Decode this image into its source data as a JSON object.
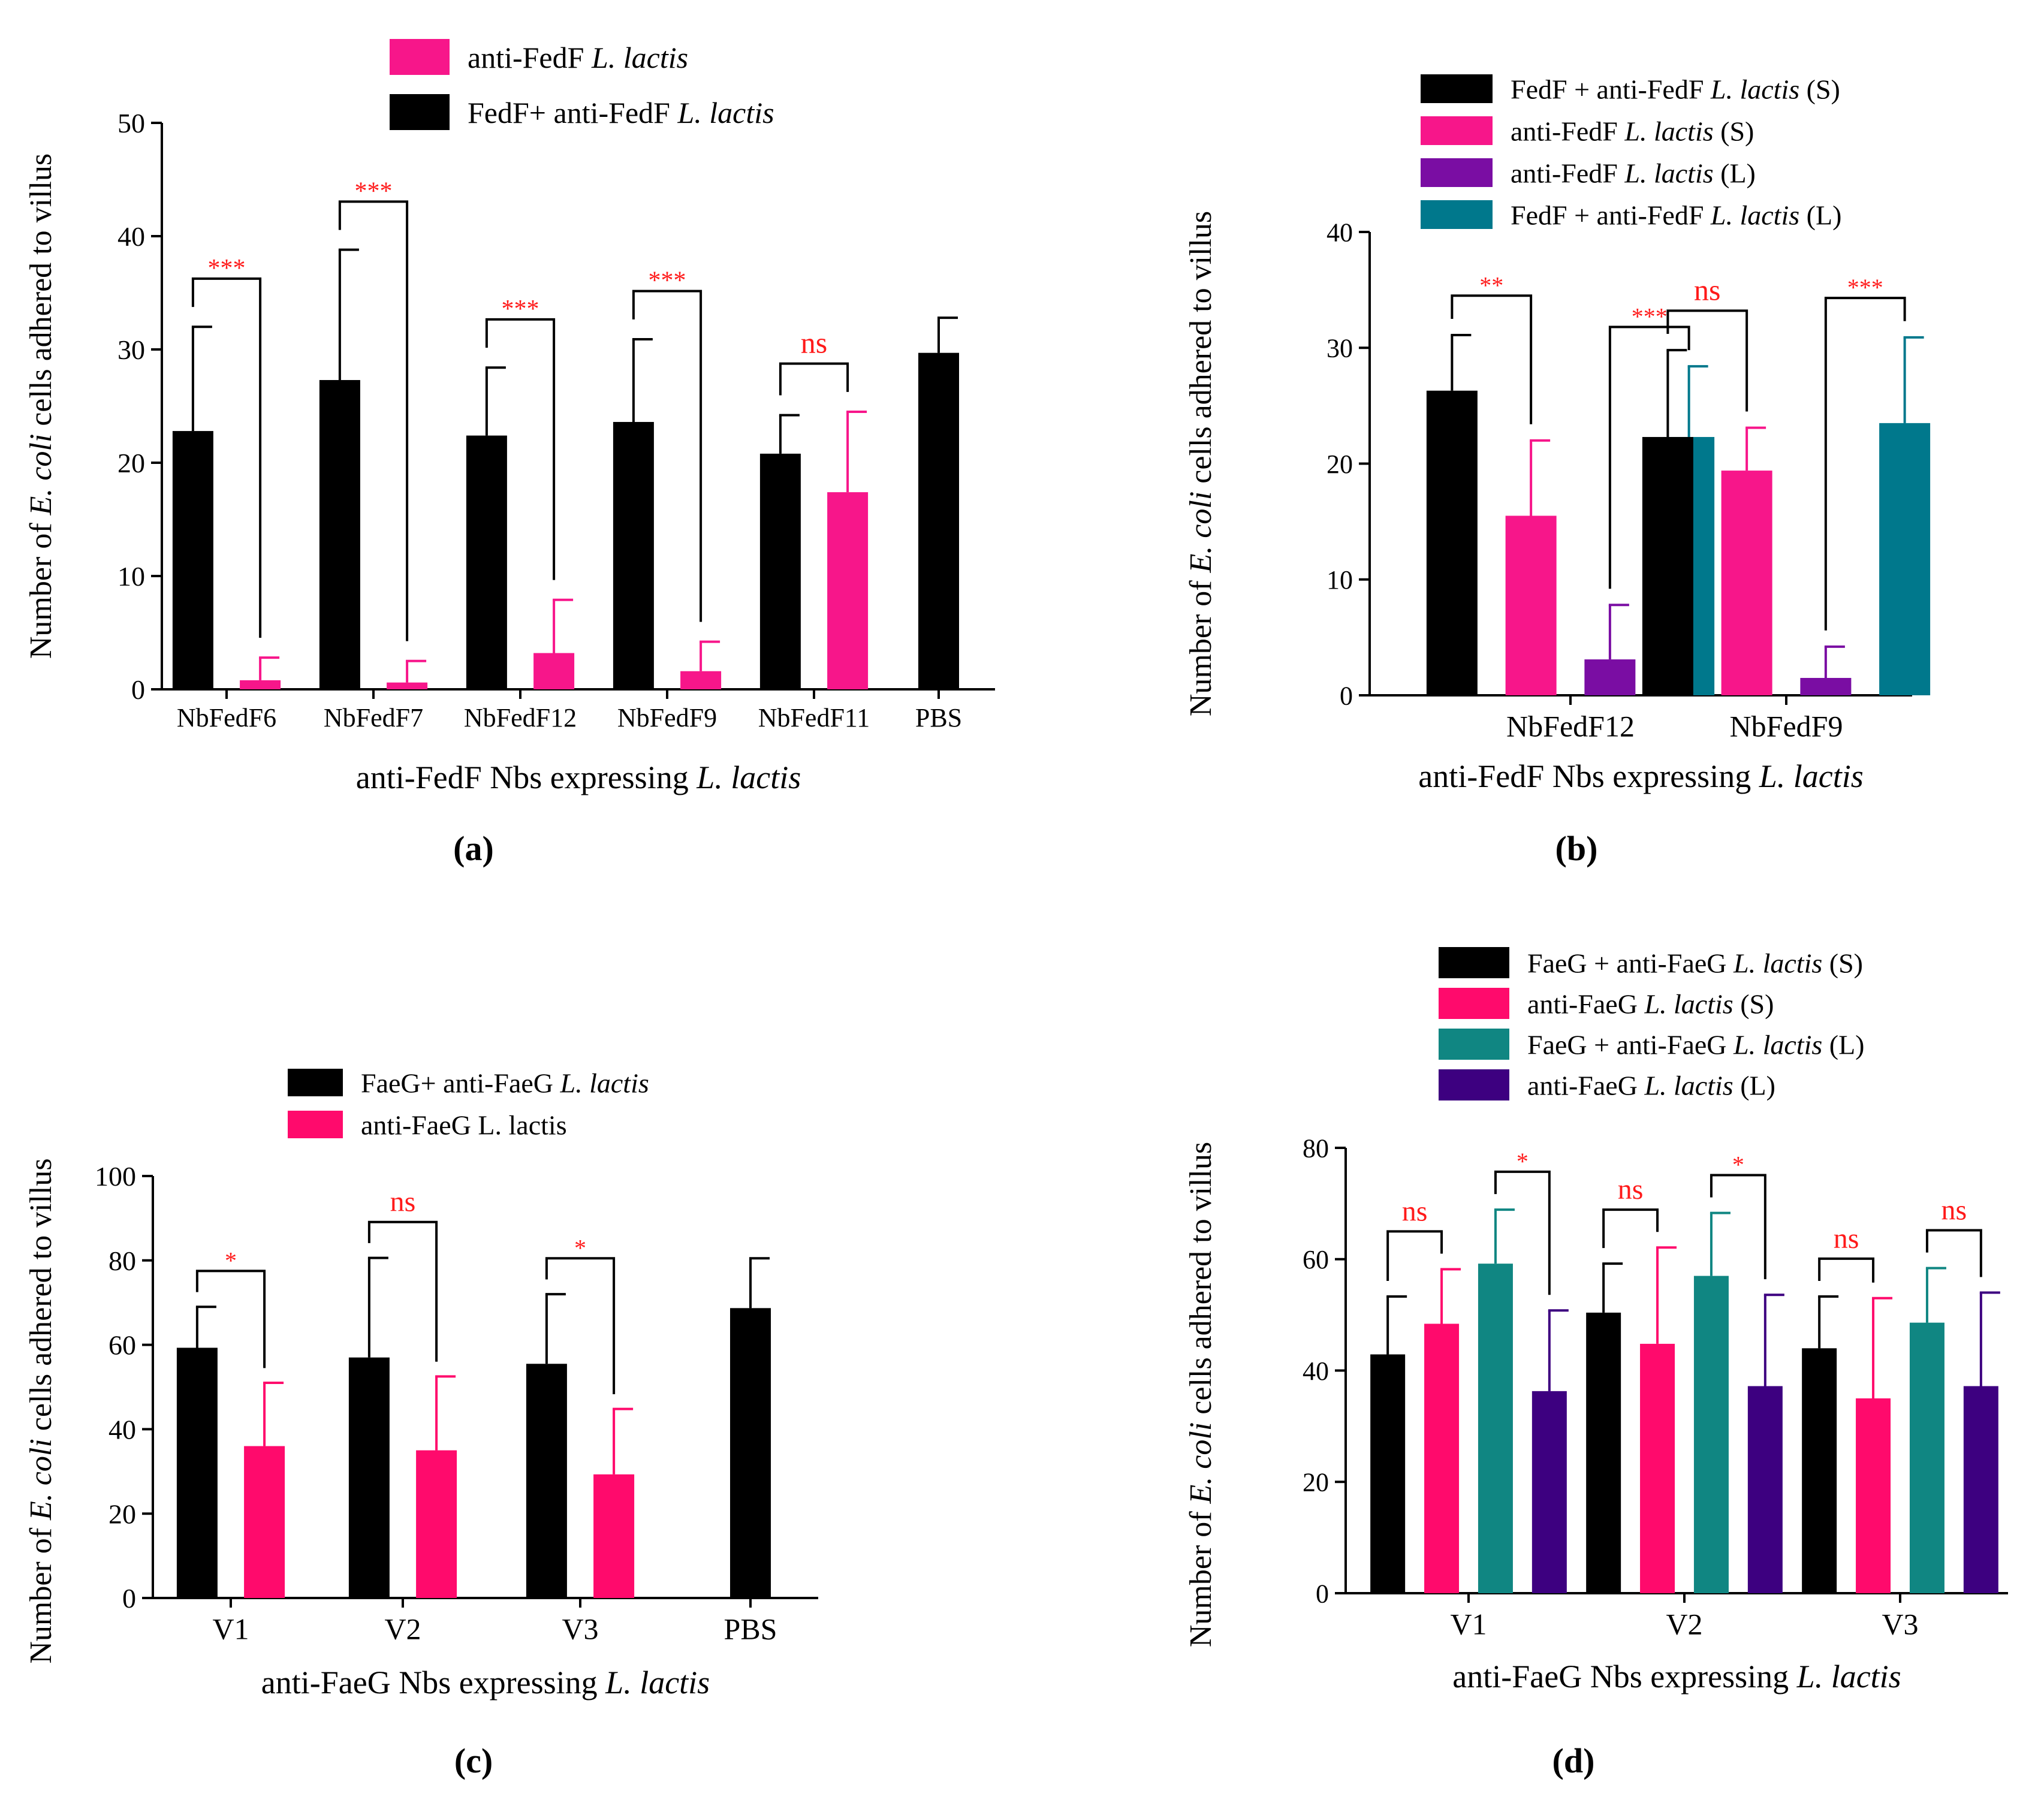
{
  "figure": {
    "panels": [
      "a",
      "b",
      "c",
      "d"
    ]
  },
  "colors": {
    "black": "#000000",
    "pink_ab": "#f7168a",
    "pink_cd": "#ff0a6c",
    "purple_b": "#7a0da3",
    "teal_b": "#00788c",
    "teal_d": "#108682",
    "indigo_d": "#3d0080",
    "sig_red": "#ff1a1a"
  },
  "chart_data": [
    {
      "id": "a",
      "type": "bar",
      "panel_label": "(a)",
      "ylabel_parts": [
        "Number of ",
        "E. coli",
        " cells adhered to villus"
      ],
      "xlabel_parts": [
        "anti-FedF Nbs expressing ",
        "L. lactis"
      ],
      "ylim": [
        0,
        50
      ],
      "yticks": [
        0,
        10,
        20,
        30,
        40,
        50
      ],
      "categories": [
        "NbFedF6",
        "NbFedF7",
        "NbFedF12",
        "NbFedF9",
        "NbFedF11",
        "PBS"
      ],
      "series": [
        {
          "name": "FedF+ anti-FedF L. lactis",
          "name_parts": [
            "FedF+ anti-FedF ",
            "L. lactis"
          ],
          "color": "#000000",
          "values": [
            22.8,
            27.3,
            22.4,
            23.6,
            20.8,
            29.7
          ],
          "errors": [
            9.2,
            11.5,
            6.0,
            7.3,
            3.4,
            3.1
          ]
        },
        {
          "name": "anti-FedF L. lactis",
          "name_parts": [
            "anti-FedF ",
            "L. lactis"
          ],
          "color": "#f7168a",
          "values": [
            0.8,
            0.6,
            3.2,
            1.6,
            17.4,
            null
          ],
          "errors": [
            2.0,
            1.9,
            4.7,
            2.6,
            7.1,
            null
          ]
        }
      ],
      "legend_order": [
        1,
        0
      ],
      "significance": [
        {
          "category": 0,
          "label": "***"
        },
        {
          "category": 1,
          "label": "***"
        },
        {
          "category": 2,
          "label": "***"
        },
        {
          "category": 3,
          "label": "***"
        },
        {
          "category": 4,
          "label": "ns"
        }
      ]
    },
    {
      "id": "b",
      "type": "bar",
      "panel_label": "(b)",
      "ylabel_parts": [
        "Number of ",
        "E. coli",
        " cells adhered to villus"
      ],
      "xlabel_parts": [
        "anti-FedF Nbs expressing ",
        "L. lactis"
      ],
      "ylim": [
        0,
        40
      ],
      "yticks": [
        0,
        10,
        20,
        30,
        40
      ],
      "categories": [
        "NbFedF12",
        "NbFedF9"
      ],
      "series": [
        {
          "name": "FedF + anti-FedF L. lactis (S)",
          "name_parts": [
            "FedF + anti-FedF ",
            "L. lactis",
            " (S)"
          ],
          "color": "#000000",
          "values": [
            26.3,
            22.3
          ],
          "errors": [
            4.8,
            7.5
          ]
        },
        {
          "name": "anti-FedF L. lactis (S)",
          "name_parts": [
            " anti-FedF ",
            "L. lactis",
            "  (S)"
          ],
          "color": "#f7168a",
          "values": [
            15.5,
            19.4
          ],
          "errors": [
            6.5,
            3.7
          ]
        },
        {
          "name": "anti-FedF L. lactis (L)",
          "name_parts": [
            "anti-FedF ",
            "L. lactis",
            "  (L)"
          ],
          "color": "#7a0da3",
          "values": [
            3.1,
            1.5
          ],
          "errors": [
            4.7,
            2.7
          ]
        },
        {
          "name": "FedF + anti-FedF L. lactis (L)",
          "name_parts": [
            "FedF + anti-FedF ",
            "L. lactis",
            " (L)"
          ],
          "color": "#00788c",
          "values": [
            22.3,
            23.5
          ],
          "errors": [
            6.1,
            7.4
          ]
        }
      ],
      "legend_order": [
        0,
        1,
        2,
        3
      ],
      "significance": [
        {
          "category": 0,
          "from": 0,
          "to": 1,
          "label": "**"
        },
        {
          "category": 0,
          "from": 2,
          "to": 3,
          "label": "***"
        },
        {
          "category": 1,
          "from": 0,
          "to": 1,
          "label": "ns"
        },
        {
          "category": 1,
          "from": 2,
          "to": 3,
          "label": "***"
        }
      ]
    },
    {
      "id": "c",
      "type": "bar",
      "panel_label": "(c)",
      "ylabel_parts": [
        "Number of ",
        "E. coli",
        " cells adhered to villus"
      ],
      "xlabel_parts": [
        "anti-FaeG Nbs expressing ",
        "L. lactis"
      ],
      "ylim": [
        0,
        100
      ],
      "yticks": [
        0,
        20,
        40,
        60,
        80,
        100
      ],
      "categories": [
        "V1",
        "V2",
        "V3",
        "PBS"
      ],
      "series": [
        {
          "name": "FaeG+ anti-FaeG L. lactis",
          "name_parts": [
            "FaeG+ anti-FaeG ",
            "L. lactis"
          ],
          "color": "#000000",
          "values": [
            59.3,
            57.0,
            55.5,
            68.7
          ],
          "errors": [
            9.7,
            23.6,
            16.5,
            11.8
          ]
        },
        {
          "name": "anti-FaeG L. lactis",
          "name_parts": [
            "anti-FaeG L. lactis"
          ],
          "color": "#ff0a6c",
          "values": [
            36.0,
            35.0,
            29.3,
            null
          ],
          "errors": [
            15.0,
            17.5,
            15.5,
            null
          ]
        }
      ],
      "legend_order": [
        0,
        1
      ],
      "significance": [
        {
          "category": 0,
          "label": "*"
        },
        {
          "category": 1,
          "label": "ns"
        },
        {
          "category": 2,
          "label": "*"
        }
      ]
    },
    {
      "id": "d",
      "type": "bar",
      "panel_label": "(d)",
      "ylabel_parts": [
        "Number of ",
        "E. coli",
        " cells adhered to villus"
      ],
      "xlabel_parts": [
        "anti-FaeG Nbs expressing ",
        "L. lactis"
      ],
      "ylim": [
        0,
        80
      ],
      "yticks": [
        0,
        20,
        40,
        60,
        80
      ],
      "categories": [
        "V1",
        "V2",
        "V3"
      ],
      "series": [
        {
          "name": "FaeG + anti-FaeG L. lactis (S)",
          "name_parts": [
            "FaeG + anti-FaeG ",
            "L. lactis",
            " (S)"
          ],
          "color": "#000000",
          "values": [
            42.9,
            50.4,
            44.0
          ],
          "errors": [
            10.4,
            8.8,
            9.3
          ]
        },
        {
          "name": "anti-FaeG L. lactis (S)",
          "name_parts": [
            "anti-FaeG ",
            "L. lactis",
            " (S)"
          ],
          "color": "#ff0a6c",
          "values": [
            48.4,
            44.8,
            35.0
          ],
          "errors": [
            9.8,
            17.3,
            18.0
          ]
        },
        {
          "name": "FaeG + anti-FaeG L. lactis (L)",
          "name_parts": [
            "FaeG + anti-FaeG ",
            "L. lactis",
            " (L)"
          ],
          "color": "#108682",
          "values": [
            59.2,
            57.0,
            48.6
          ],
          "errors": [
            9.7,
            11.3,
            9.8
          ]
        },
        {
          "name": "anti-FaeG L. lactis (L)",
          "name_parts": [
            "anti-FaeG ",
            "L. lactis",
            " (L)"
          ],
          "color": "#3d0080",
          "values": [
            36.3,
            37.2,
            37.2
          ],
          "errors": [
            14.5,
            16.4,
            16.8
          ]
        }
      ],
      "legend_order": [
        0,
        1,
        2,
        3
      ],
      "significance": [
        {
          "category": 0,
          "from": 0,
          "to": 1,
          "label": "ns"
        },
        {
          "category": 0,
          "from": 2,
          "to": 3,
          "label": "*"
        },
        {
          "category": 1,
          "from": 0,
          "to": 1,
          "label": "ns"
        },
        {
          "category": 1,
          "from": 2,
          "to": 3,
          "label": "*"
        },
        {
          "category": 2,
          "from": 0,
          "to": 1,
          "label": "ns"
        },
        {
          "category": 2,
          "from": 2,
          "to": 3,
          "label": "ns"
        }
      ]
    }
  ]
}
